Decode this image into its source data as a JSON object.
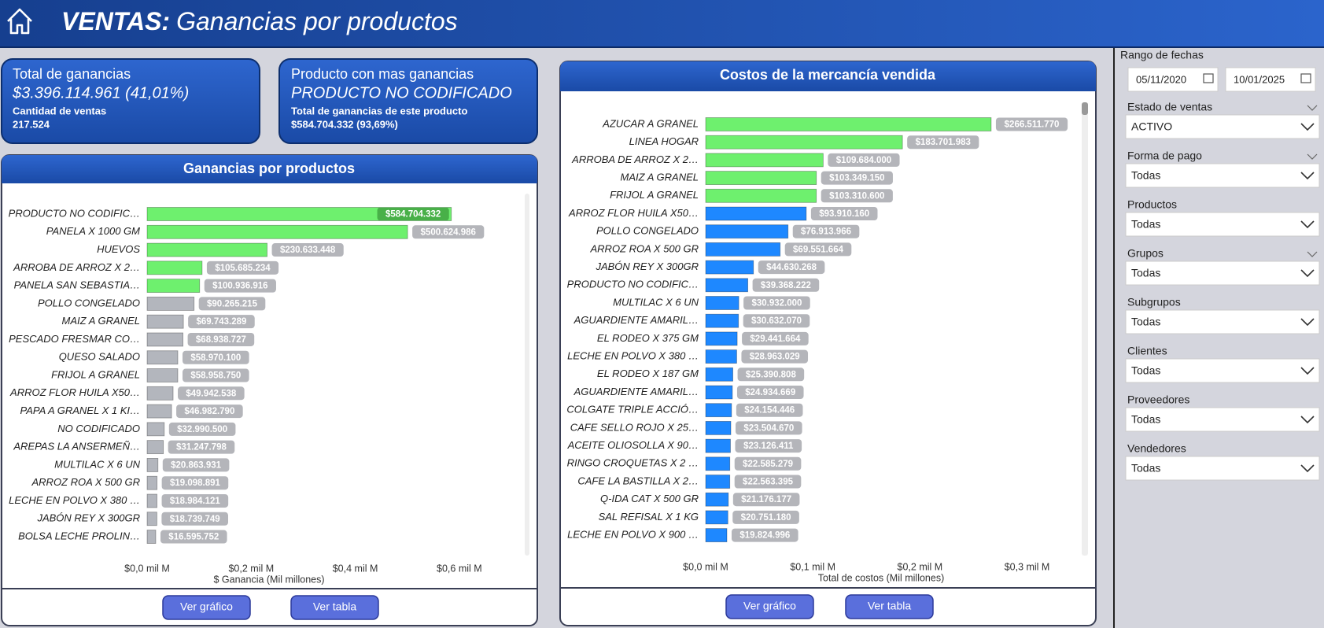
{
  "header": {
    "title_bold": "VENTAS:",
    "title_rest": "Ganancias por productos"
  },
  "cards": [
    {
      "title": "Total de ganancias",
      "value": "$3.396.114.961 (41,01%)",
      "sub_label": "Cantidad de ventas",
      "sub_value": "217.524"
    },
    {
      "title": "Producto con mas ganancias",
      "value": "PRODUCTO NO CODIFICADO",
      "sub_label": "Total de ganancias de este producto",
      "sub_value": "$584.704.332 (93,69%)"
    }
  ],
  "chart_data": [
    {
      "type": "bar",
      "orientation": "horizontal",
      "title": "Ganancias por productos",
      "x_label": "$ Ganancia (Mil millones)",
      "categories": [
        "PRODUCTO NO CODIFIC…",
        "PANELA X 1000 GM",
        "HUEVOS",
        "ARROBA DE ARROZ X 2…",
        "PANELA SAN SEBASTIA…",
        "POLLO CONGELADO",
        "MAIZ A GRANEL",
        "PESCADO FRESMAR CO…",
        "QUESO SALADO",
        "FRIJOL A GRANEL",
        "ARROZ FLOR HUILA X50…",
        "PAPA A GRANEL X 1 KI…",
        "NO CODIFICADO",
        "AREPAS LA ANSERMEÑ…",
        "MULTILAC X 6 UN",
        "ARROZ ROA X 500 GR",
        "LECHE EN POLVO X 380 …",
        "JABÓN REY X 300GR",
        "BOLSA LECHE PROLIN…"
      ],
      "values": [
        584704332,
        500624986,
        230633448,
        105685234,
        100936916,
        90265215,
        69743289,
        68938727,
        58970100,
        58958750,
        49942538,
        46982790,
        32990500,
        31247798,
        20863931,
        19098891,
        18984121,
        18739749,
        16595752
      ],
      "value_labels": [
        "$584.704.332",
        "$500.624.986",
        "$230.633.448",
        "$105.685.234",
        "$100.936.916",
        "$90.265.215",
        "$69.743.289",
        "$68.938.727",
        "$58.970.100",
        "$58.958.750",
        "$49.942.538",
        "$46.982.790",
        "$32.990.500",
        "$31.247.798",
        "$20.863.931",
        "$19.098.891",
        "$18.984.121",
        "$18.739.749",
        "$16.595.752"
      ],
      "colors": [
        "#6ef06e",
        "#6ef06e",
        "#6ef06e",
        "#6ef06e",
        "#6ef06e",
        "#b3b6bd",
        "#b3b6bd",
        "#b3b6bd",
        "#b3b6bd",
        "#b3b6bd",
        "#b3b6bd",
        "#b3b6bd",
        "#b3b6bd",
        "#b3b6bd",
        "#b3b6bd",
        "#b3b6bd",
        "#b3b6bd",
        "#b3b6bd",
        "#b3b6bd"
      ],
      "xlim": [
        0,
        700000000
      ],
      "xticks": [
        {
          "value": 0,
          "label": "$0,0 mil M"
        },
        {
          "value": 200000000,
          "label": "$0,2 mil M"
        },
        {
          "value": 400000000,
          "label": "$0,4 mil M"
        },
        {
          "value": 600000000,
          "label": "$0,6 mil M"
        }
      ]
    },
    {
      "type": "bar",
      "orientation": "horizontal",
      "title": "Costos de la mercancía vendida",
      "x_label": "Total de costos (Mil millones)",
      "categories": [
        "AZUCAR A GRANEL",
        "LINEA HOGAR",
        "ARROBA DE ARROZ X 2…",
        "MAIZ A GRANEL",
        "FRIJOL A GRANEL",
        "ARROZ FLOR HUILA X50…",
        "POLLO CONGELADO",
        "ARROZ ROA X 500 GR",
        "JABÓN REY X 300GR",
        "PRODUCTO NO CODIFIC…",
        "MULTILAC X 6 UN",
        "AGUARDIENTE AMARIL…",
        "EL RODEO X 375 GM",
        "LECHE EN POLVO X 380 …",
        "EL RODEO X 187 GM",
        "AGUARDIENTE AMARIL…",
        "COLGATE TRIPLE ACCIÓ…",
        "CAFE SELLO ROJO X 25…",
        "ACEITE OLIOSOLLA X 90…",
        "RINGO CROQUETAS X 2 …",
        "CAFE LA BASTILLA X 2…",
        "Q-IDA CAT X 500 GR",
        "SAL REFISAL X 1 KG",
        "LECHE EN POLVO X 900 …"
      ],
      "values": [
        266511770,
        183701983,
        109684000,
        103349150,
        103310600,
        93910160,
        76913966,
        69551664,
        44630268,
        39368222,
        30932000,
        30632070,
        29441664,
        28963029,
        25390808,
        24934669,
        24154446,
        23504670,
        23126411,
        22585279,
        22563395,
        21176177,
        20751180,
        19824996
      ],
      "value_labels": [
        "$266.511.770",
        "$183.701.983",
        "$109.684.000",
        "$103.349.150",
        "$103.310.600",
        "$93.910.160",
        "$76.913.966",
        "$69.551.664",
        "$44.630.268",
        "$39.368.222",
        "$30.932.000",
        "$30.632.070",
        "$29.441.664",
        "$28.963.029",
        "$25.390.808",
        "$24.934.669",
        "$24.154.446",
        "$23.504.670",
        "$23.126.411",
        "$22.585.279",
        "$22.563.395",
        "$21.176.177",
        "$20.751.180",
        "$19.824.996"
      ],
      "colors": [
        "#6ef06e",
        "#6ef06e",
        "#6ef06e",
        "#6ef06e",
        "#6ef06e",
        "#1e88ff",
        "#1e88ff",
        "#1e88ff",
        "#1e88ff",
        "#1e88ff",
        "#1e88ff",
        "#1e88ff",
        "#1e88ff",
        "#1e88ff",
        "#1e88ff",
        "#1e88ff",
        "#1e88ff",
        "#1e88ff",
        "#1e88ff",
        "#1e88ff",
        "#1e88ff",
        "#1e88ff",
        "#1e88ff",
        "#1e88ff"
      ],
      "xlim": [
        0,
        340000000
      ],
      "xticks": [
        {
          "value": 0,
          "label": "$0,0 mil M"
        },
        {
          "value": 100000000,
          "label": "$0,1 mil M"
        },
        {
          "value": 200000000,
          "label": "$0,2 mil M"
        },
        {
          "value": 300000000,
          "label": "$0,3 mil M"
        }
      ]
    }
  ],
  "panel_buttons": [
    [
      "Ver gráfico",
      "Ver tabla"
    ],
    [
      "Ver gráfico",
      "Ver tabla"
    ]
  ],
  "filters": {
    "date_range": {
      "label": "Rango de fechas",
      "start": "05/11/2020",
      "end": "10/01/2025"
    },
    "slicers": [
      {
        "label": "Estado de ventas",
        "value": "ACTIVO"
      },
      {
        "label": "Forma de pago",
        "value": "Todas"
      },
      {
        "label": "Productos",
        "value": "Todas"
      },
      {
        "label": "Grupos",
        "value": "Todas"
      },
      {
        "label": "Subgrupos",
        "value": "Todas"
      },
      {
        "label": "Clientes",
        "value": "Todas"
      },
      {
        "label": "Proveedores",
        "value": "Todas"
      },
      {
        "label": "Vendedores",
        "value": "Todas"
      }
    ]
  }
}
